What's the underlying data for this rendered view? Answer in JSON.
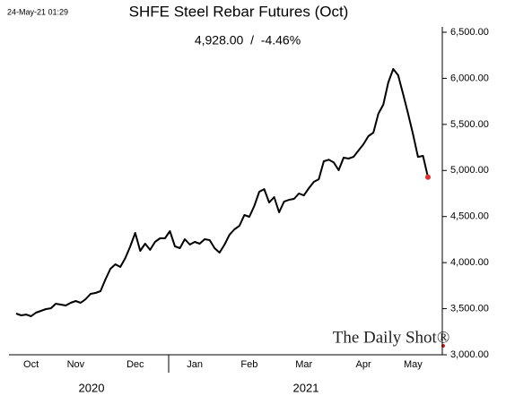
{
  "chart_data": {
    "type": "line",
    "title": "SHFE Steel Rebar Futures (Oct)",
    "subtitle": "4,928.00  /  -4.46%",
    "timestamp": "24-May-21 01:29",
    "watermark": "The Daily Shot®",
    "categories": [
      null,
      null,
      null,
      "Oct",
      null,
      null,
      null,
      null,
      null,
      null,
      null,
      null,
      "Nov",
      null,
      null,
      null,
      null,
      null,
      null,
      null,
      null,
      null,
      null,
      null,
      "Dec",
      null,
      null,
      null,
      null,
      null,
      null,
      null,
      null,
      null,
      null,
      null,
      "Jan",
      null,
      null,
      null,
      null,
      null,
      null,
      null,
      null,
      null,
      null,
      "Feb",
      null,
      null,
      null,
      null,
      null,
      null,
      null,
      null,
      null,
      null,
      "Mar",
      null,
      null,
      null,
      null,
      null,
      null,
      null,
      null,
      null,
      null,
      null,
      "Apr",
      null,
      null,
      null,
      null,
      null,
      null,
      null,
      null,
      null,
      "May",
      null,
      null,
      null
    ],
    "year_labels": [
      "2020",
      "2021"
    ],
    "series": [
      {
        "name": "SHFE Steel Rebar Futures (Oct)",
        "color": "#000000",
        "values": [
          3447,
          3428,
          3437,
          3418,
          3457,
          3476,
          3496,
          3505,
          3554,
          3544,
          3535,
          3564,
          3583,
          3564,
          3603,
          3661,
          3671,
          3690,
          3817,
          3933,
          3982,
          3953,
          4050,
          4176,
          4322,
          4128,
          4206,
          4138,
          4225,
          4264,
          4264,
          4342,
          4176,
          4157,
          4254,
          4196,
          4225,
          4206,
          4254,
          4244,
          4157,
          4108,
          4196,
          4303,
          4361,
          4400,
          4517,
          4497,
          4614,
          4769,
          4798,
          4653,
          4711,
          4546,
          4662,
          4682,
          4692,
          4750,
          4730,
          4808,
          4876,
          4905,
          5100,
          5117,
          5088,
          5003,
          5139,
          5129,
          5148,
          5217,
          5285,
          5372,
          5411,
          5615,
          5713,
          5956,
          6101,
          6033,
          5829,
          5615,
          5392,
          5148,
          5158,
          4928
        ]
      }
    ],
    "last_point_color": "#e03030",
    "ylim": [
      3000,
      6500
    ],
    "yticks": [
      {
        "value": 3000,
        "label": "3,000.00"
      },
      {
        "value": 3500,
        "label": "3,500.00"
      },
      {
        "value": 4000,
        "label": "4,000.00"
      },
      {
        "value": 4500,
        "label": "4,500.00"
      },
      {
        "value": 5000,
        "label": "5,000.00"
      },
      {
        "value": 5500,
        "label": "5,500.00"
      },
      {
        "value": 6000,
        "label": "6,000.00"
      },
      {
        "value": 6500,
        "label": "6,500.00"
      }
    ],
    "grid": false
  }
}
